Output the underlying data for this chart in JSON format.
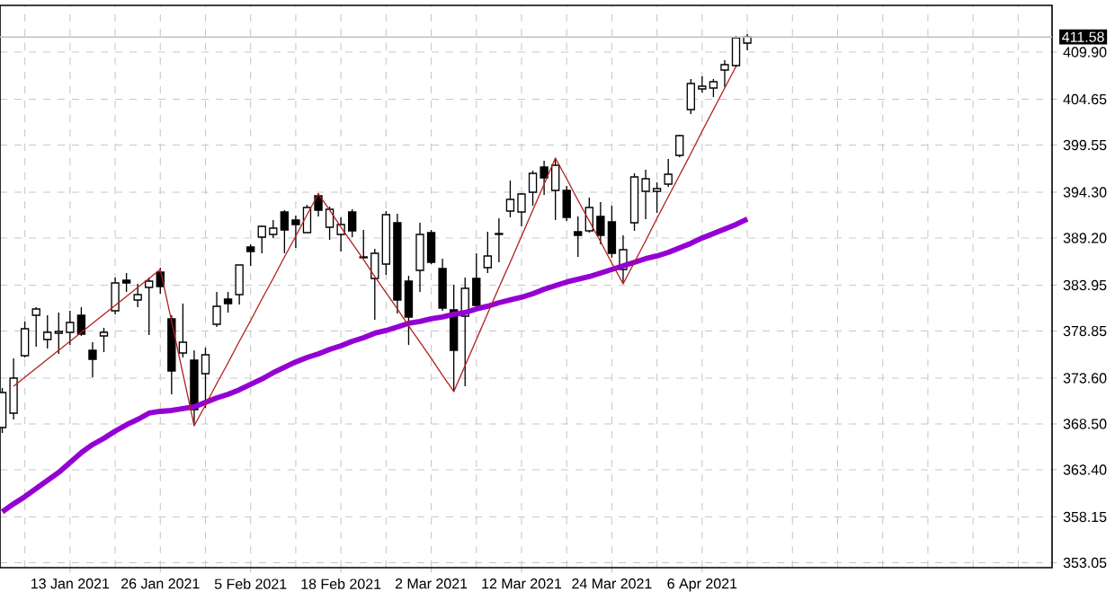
{
  "chart_data": {
    "type": "candlestick",
    "categories": [
      null,
      null,
      null,
      null,
      null,
      null,
      "13 Jan 2021",
      null,
      null,
      null,
      null,
      null,
      null,
      null,
      "26 Jan 2021",
      null,
      null,
      null,
      null,
      null,
      null,
      null,
      "5 Feb 2021",
      null,
      null,
      null,
      null,
      null,
      null,
      null,
      "18 Feb 2021",
      null,
      null,
      null,
      null,
      null,
      null,
      null,
      "2 Mar 2021",
      null,
      null,
      null,
      null,
      null,
      null,
      null,
      "12 Mar 2021",
      null,
      null,
      null,
      null,
      null,
      null,
      null,
      "24 Mar 2021",
      null,
      null,
      null,
      null,
      null,
      null,
      null,
      "6 Apr 2021",
      null,
      null,
      null,
      null
    ],
    "ohlc": [
      [
        368.1,
        372.5,
        367.5,
        372.0
      ],
      [
        369.7,
        375.8,
        369.0,
        373.6
      ],
      [
        376.1,
        379.9,
        375.9,
        379.1
      ],
      [
        380.6,
        381.5,
        377.1,
        381.3
      ],
      [
        377.9,
        380.6,
        376.9,
        378.7
      ],
      [
        378.6,
        380.9,
        376.3,
        378.8
      ],
      [
        378.7,
        381.1,
        377.3,
        379.8
      ],
      [
        380.6,
        381.5,
        378.3,
        378.5
      ],
      [
        376.7,
        377.6,
        373.7,
        375.7
      ],
      [
        378.3,
        379.2,
        376.5,
        378.7
      ],
      [
        381.1,
        384.8,
        380.7,
        384.2
      ],
      [
        384.5,
        385.3,
        383.2,
        384.2
      ],
      [
        382.3,
        384.1,
        381.5,
        382.9
      ],
      [
        383.7,
        384.8,
        378.4,
        384.4
      ],
      [
        385.4,
        385.9,
        383.0,
        383.8
      ],
      [
        380.2,
        380.6,
        371.8,
        374.4
      ],
      [
        376.4,
        381.9,
        375.9,
        377.6
      ],
      [
        375.6,
        376.7,
        368.3,
        370.1
      ],
      [
        374.1,
        377.0,
        370.3,
        376.2
      ],
      [
        379.6,
        383.2,
        379.3,
        381.6
      ],
      [
        382.4,
        383.2,
        380.9,
        381.9
      ],
      [
        382.9,
        386.2,
        381.8,
        386.2
      ],
      [
        388.2,
        388.5,
        386.1,
        387.7
      ],
      [
        389.3,
        390.6,
        387.5,
        390.5
      ],
      [
        389.6,
        391.2,
        389.2,
        390.3
      ],
      [
        392.1,
        392.3,
        387.5,
        390.1
      ],
      [
        391.2,
        391.7,
        388.1,
        390.7
      ],
      [
        389.8,
        392.9,
        389.8,
        392.6
      ],
      [
        393.9,
        394.2,
        391.6,
        392.3
      ],
      [
        390.4,
        392.7,
        389.0,
        392.4
      ],
      [
        389.6,
        391.5,
        387.7,
        390.7
      ],
      [
        392.1,
        392.4,
        389.3,
        390.0
      ],
      [
        387.1,
        390.1,
        386.9,
        387.0
      ],
      [
        384.7,
        388.0,
        380.1,
        387.5
      ],
      [
        386.3,
        392.2,
        385.1,
        391.8
      ],
      [
        390.9,
        391.9,
        380.8,
        382.3
      ],
      [
        384.4,
        385.0,
        377.3,
        380.4
      ],
      [
        385.6,
        390.9,
        383.2,
        389.6
      ],
      [
        389.8,
        390.1,
        386.3,
        386.5
      ],
      [
        385.8,
        386.9,
        381.1,
        381.4
      ],
      [
        381.2,
        384.0,
        372.1,
        376.7
      ],
      [
        380.5,
        384.8,
        372.7,
        383.6
      ],
      [
        384.7,
        387.5,
        381.4,
        381.7
      ],
      [
        385.9,
        389.9,
        385.3,
        387.2
      ],
      [
        389.7,
        391.4,
        386.5,
        389.6
      ],
      [
        392.2,
        395.6,
        391.5,
        393.5
      ],
      [
        392.1,
        394.2,
        390.5,
        394.1
      ],
      [
        394.3,
        396.7,
        392.8,
        396.4
      ],
      [
        397.1,
        397.8,
        394.0,
        395.9
      ],
      [
        394.5,
        398.1,
        391.2,
        397.3
      ],
      [
        394.5,
        395.0,
        391.1,
        391.5
      ],
      [
        389.9,
        391.6,
        387.1,
        389.5
      ],
      [
        390.0,
        393.7,
        389.8,
        392.6
      ],
      [
        391.6,
        393.2,
        388.5,
        389.5
      ],
      [
        391.0,
        392.8,
        387.0,
        387.5
      ],
      [
        385.7,
        389.5,
        384.1,
        387.9
      ],
      [
        390.9,
        396.4,
        390.0,
        396.0
      ],
      [
        394.4,
        396.8,
        391.3,
        395.8
      ],
      [
        394.4,
        395.4,
        392.0,
        394.7
      ],
      [
        395.2,
        398.0,
        394.9,
        396.3
      ],
      [
        398.4,
        400.7,
        398.2,
        400.6
      ],
      [
        403.5,
        406.9,
        403.0,
        406.4
      ],
      [
        405.8,
        407.2,
        405.4,
        406.1
      ],
      [
        405.9,
        406.9,
        404.9,
        406.6
      ],
      [
        407.9,
        409.0,
        406.0,
        408.5
      ],
      [
        408.4,
        411.7,
        408.2,
        411.5
      ],
      [
        410.9,
        411.9,
        410.1,
        411.58
      ]
    ],
    "series": [
      {
        "type": "line",
        "color": "#9400d3",
        "values": [
          358.7,
          359.6,
          360.4,
          361.3,
          362.2,
          363.1,
          364.2,
          365.3,
          366.2,
          366.9,
          367.7,
          368.4,
          369.0,
          369.7,
          369.9,
          370.0,
          370.2,
          370.4,
          370.9,
          371.4,
          371.8,
          372.3,
          372.9,
          373.5,
          374.2,
          374.8,
          375.4,
          375.9,
          376.3,
          376.8,
          377.2,
          377.7,
          378.1,
          378.6,
          378.9,
          379.3,
          379.7,
          379.9,
          380.2,
          380.4,
          380.7,
          380.9,
          381.3,
          381.6,
          382.0,
          382.3,
          382.6,
          383.0,
          383.5,
          383.9,
          384.3,
          384.6,
          384.9,
          385.3,
          385.7,
          386.1,
          386.5,
          386.9,
          387.2,
          387.6,
          388.1,
          388.6,
          389.2,
          389.7,
          390.2,
          390.7,
          391.3
        ]
      },
      {
        "type": "line",
        "color": "#b22222",
        "values": [
          null,
          372.7,
          373.7,
          374.7,
          375.7,
          376.7,
          377.7,
          378.7,
          379.7,
          380.7,
          381.7,
          382.7,
          383.7,
          384.7,
          385.7,
          379.9,
          374.1,
          368.3,
          370.6,
          373.0,
          375.3,
          377.7,
          380.0,
          382.4,
          384.7,
          387.1,
          389.4,
          391.8,
          394.1,
          392.3,
          390.4,
          388.6,
          386.8,
          384.9,
          383.1,
          381.3,
          379.4,
          377.6,
          375.8,
          373.9,
          372.1,
          375.0,
          377.9,
          380.8,
          383.7,
          386.5,
          389.4,
          392.3,
          395.2,
          398.1,
          395.8,
          393.4,
          391.1,
          388.8,
          386.4,
          384.1,
          386.5,
          388.9,
          391.4,
          393.8,
          396.2,
          398.6,
          401.1,
          403.5,
          405.9,
          408.3,
          null
        ]
      }
    ],
    "ylim": [
      352.5,
      415.1
    ],
    "yticks": [
      {
        "value": 353.05,
        "label": "353.05"
      },
      {
        "value": 358.15,
        "label": "358.15"
      },
      {
        "value": 363.4,
        "label": "363.40"
      },
      {
        "value": 368.5,
        "label": "368.50"
      },
      {
        "value": 373.6,
        "label": "373.60"
      },
      {
        "value": 378.85,
        "label": "378.85"
      },
      {
        "value": 383.95,
        "label": "383.95"
      },
      {
        "value": 389.2,
        "label": "389.20"
      },
      {
        "value": 394.3,
        "label": "394.30"
      },
      {
        "value": 399.55,
        "label": "399.55"
      },
      {
        "value": 404.65,
        "label": "404.65"
      },
      {
        "value": 409.9,
        "label": "409.90"
      }
    ],
    "grid": true,
    "ref_lines": [
      {
        "axis": "y",
        "value": 411.58,
        "label": "411.58",
        "color": "#c0c0c0"
      }
    ]
  }
}
